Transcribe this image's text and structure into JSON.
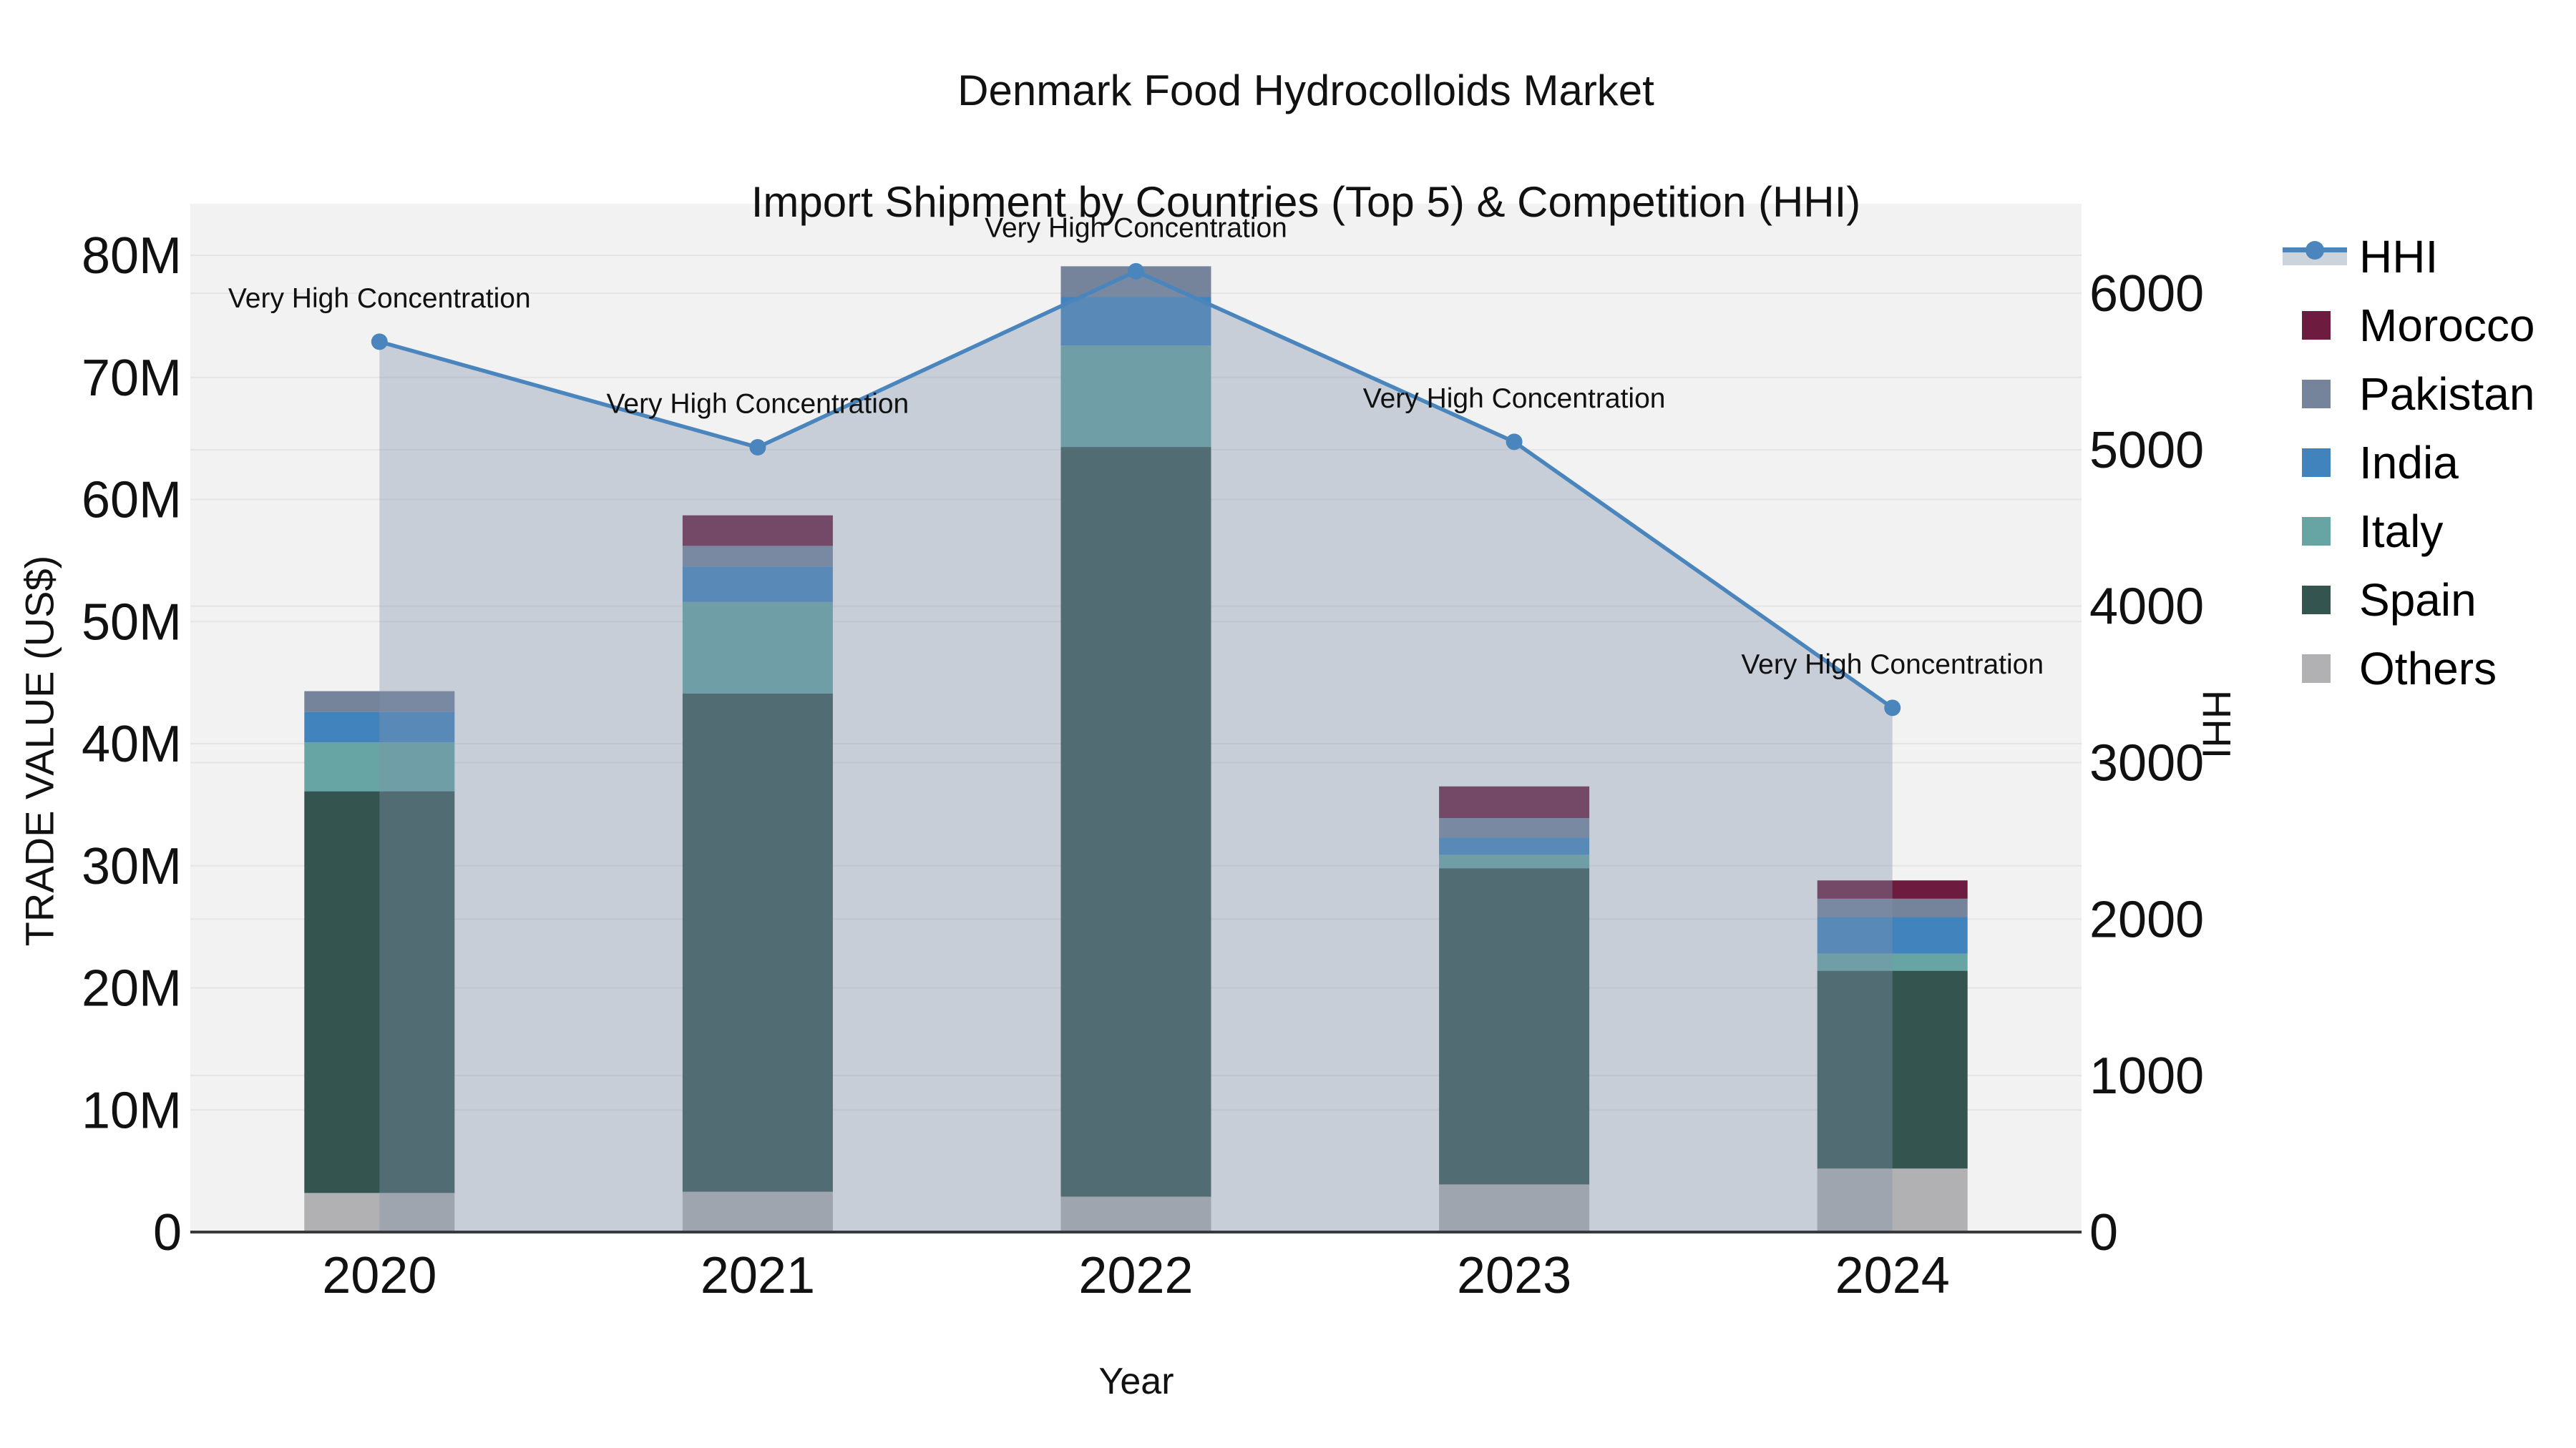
{
  "title": {
    "line1": "Denmark Food Hydrocolloids Market",
    "line2": "Import Shipment by Countries (Top 5) & Competition (HHI)"
  },
  "legend": {
    "items": [
      {
        "label": "HHI",
        "type": "line",
        "color": "#4a86bd"
      },
      {
        "label": "Morocco",
        "type": "swatch",
        "color": "#6d1b3e"
      },
      {
        "label": "Pakistan",
        "type": "swatch",
        "color": "#75849b"
      },
      {
        "label": "India",
        "type": "swatch",
        "color": "#4183bd"
      },
      {
        "label": "Italy",
        "type": "swatch",
        "color": "#66a5a4"
      },
      {
        "label": "Spain",
        "type": "swatch",
        "color": "#34554f"
      },
      {
        "label": "Others",
        "type": "swatch",
        "color": "#b1b0b2"
      }
    ]
  },
  "colors": {
    "plot_background": "#f2f2f2",
    "gridline": "#e5e5e5",
    "axis_line": "#3a3a3a",
    "hhi_line": "#4a86bd",
    "hhi_area_fill": "rgba(130,146,171,0.38)",
    "text": "#111111"
  },
  "chart_data": {
    "type": "stacked-bar+line",
    "title": "Denmark Food Hydrocolloids Market — Import Shipment by Countries (Top 5) & Competition (HHI)",
    "categories": [
      "2020",
      "2021",
      "2022",
      "2023",
      "2024"
    ],
    "bar_unit": "US$ millions",
    "bar_stack_order_bottom_to_top": [
      "Others",
      "Spain",
      "Italy",
      "India",
      "Pakistan",
      "Morocco"
    ],
    "bar_series": [
      {
        "name": "Others",
        "color": "#b1b0b2",
        "values_musd": [
          3.2,
          3.3,
          2.9,
          3.9,
          5.2
        ]
      },
      {
        "name": "Spain",
        "color": "#34554f",
        "values_musd": [
          32.9,
          40.8,
          61.4,
          25.9,
          16.2
        ]
      },
      {
        "name": "Italy",
        "color": "#66a5a4",
        "values_musd": [
          4.0,
          7.5,
          8.3,
          1.1,
          1.4
        ]
      },
      {
        "name": "India",
        "color": "#4183bd",
        "values_musd": [
          2.5,
          2.9,
          4.0,
          1.4,
          3.0
        ]
      },
      {
        "name": "Pakistan",
        "color": "#75849b",
        "values_musd": [
          1.7,
          1.7,
          2.5,
          1.6,
          1.5
        ]
      },
      {
        "name": "Morocco",
        "color": "#6d1b3e",
        "values_musd": [
          0,
          2.5,
          0,
          2.6,
          1.5
        ]
      }
    ],
    "bar_totals_musd": [
      44.3,
      58.7,
      79.1,
      36.5,
      28.8
    ],
    "line_series": {
      "name": "HHI",
      "color": "#4a86bd",
      "values": [
        5690,
        5015,
        6140,
        5050,
        3350
      ]
    },
    "annotations": [
      {
        "category": "2020",
        "text": "Very High Concentration"
      },
      {
        "category": "2021",
        "text": "Very High Concentration"
      },
      {
        "category": "2022",
        "text": "Very High Concentration"
      },
      {
        "category": "2023",
        "text": "Very High Concentration"
      },
      {
        "category": "2024",
        "text": "Very High Concentration"
      }
    ],
    "x_axis": {
      "title": "Year",
      "tick_labels": [
        "2020",
        "2021",
        "2022",
        "2023",
        "2024"
      ]
    },
    "y_left_axis": {
      "title": "TRADE VALUE (US$)",
      "tick_labels": [
        "0",
        "10M",
        "20M",
        "30M",
        "40M",
        "50M",
        "60M",
        "70M",
        "80M"
      ],
      "range_musd": [
        0,
        84.2
      ],
      "grid": true
    },
    "y_right_axis": {
      "title": "HHI",
      "tick_labels": [
        "0",
        "1000",
        "2000",
        "3000",
        "4000",
        "5000",
        "6000"
      ],
      "range": [
        0,
        6000
      ],
      "grid": true
    },
    "legend_position": "right"
  }
}
